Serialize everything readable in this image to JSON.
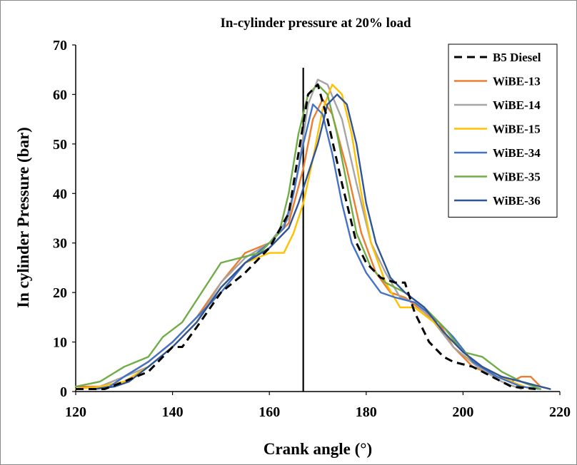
{
  "chart_data": {
    "type": "line",
    "title": "In-cylinder pressure at 20% load",
    "xlabel": "Crank angle (°)",
    "ylabel": "In cylinder Pressure (bar)",
    "xlim": [
      120,
      220
    ],
    "ylim": [
      0,
      70
    ],
    "x_ticks": [
      "120",
      "140",
      "160",
      "180",
      "200",
      "220"
    ],
    "y_ticks": [
      "0",
      "10",
      "20",
      "30",
      "40",
      "50",
      "60",
      "70"
    ],
    "grid": false,
    "legend_position": "top-right",
    "reference_line_x": 167,
    "series": [
      {
        "name": "B5 Diesel",
        "color": "#000000",
        "dashed": true,
        "points": [
          [
            120,
            0.5
          ],
          [
            126,
            0.5
          ],
          [
            130,
            2
          ],
          [
            135,
            4
          ],
          [
            140,
            9
          ],
          [
            142,
            9
          ],
          [
            145,
            13
          ],
          [
            150,
            20
          ],
          [
            155,
            24
          ],
          [
            160,
            29
          ],
          [
            164,
            36
          ],
          [
            166,
            48
          ],
          [
            168,
            60
          ],
          [
            170,
            62
          ],
          [
            172,
            55
          ],
          [
            175,
            42
          ],
          [
            178,
            30
          ],
          [
            180,
            26
          ],
          [
            183,
            23
          ],
          [
            186,
            22
          ],
          [
            188,
            22
          ],
          [
            190,
            16
          ],
          [
            193,
            10
          ],
          [
            196,
            7
          ],
          [
            198,
            6
          ],
          [
            202,
            5
          ],
          [
            206,
            3
          ],
          [
            210,
            1
          ],
          [
            215,
            0.5
          ]
        ]
      },
      {
        "name": "WiBE-13",
        "color": "#ED7D31",
        "dashed": false,
        "points": [
          [
            120,
            1
          ],
          [
            125,
            1
          ],
          [
            130,
            3
          ],
          [
            135,
            6
          ],
          [
            140,
            10
          ],
          [
            145,
            15
          ],
          [
            150,
            22
          ],
          [
            155,
            28
          ],
          [
            160,
            30
          ],
          [
            164,
            34
          ],
          [
            167,
            45
          ],
          [
            169,
            55
          ],
          [
            171,
            59
          ],
          [
            173,
            56
          ],
          [
            176,
            45
          ],
          [
            179,
            32
          ],
          [
            182,
            24
          ],
          [
            185,
            20
          ],
          [
            188,
            19
          ],
          [
            192,
            16
          ],
          [
            195,
            14
          ],
          [
            198,
            9
          ],
          [
            202,
            5
          ],
          [
            207,
            3
          ],
          [
            210,
            2
          ],
          [
            212,
            3
          ],
          [
            214,
            3
          ],
          [
            216,
            1
          ],
          [
            218,
            0.5
          ]
        ]
      },
      {
        "name": "WiBE-14",
        "color": "#A5A5A5",
        "dashed": false,
        "points": [
          [
            120,
            0.5
          ],
          [
            125,
            1
          ],
          [
            130,
            3
          ],
          [
            135,
            5
          ],
          [
            140,
            9
          ],
          [
            145,
            14
          ],
          [
            150,
            22
          ],
          [
            155,
            27
          ],
          [
            160,
            30
          ],
          [
            164,
            35
          ],
          [
            166,
            45
          ],
          [
            168,
            58
          ],
          [
            170,
            63
          ],
          [
            172,
            62
          ],
          [
            175,
            55
          ],
          [
            178,
            42
          ],
          [
            181,
            30
          ],
          [
            184,
            24
          ],
          [
            187,
            19
          ],
          [
            190,
            18
          ],
          [
            194,
            14
          ],
          [
            198,
            9
          ],
          [
            203,
            5
          ],
          [
            208,
            2
          ],
          [
            212,
            0.5
          ]
        ]
      },
      {
        "name": "WiBE-15",
        "color": "#FFC000",
        "dashed": false,
        "points": [
          [
            120,
            0.5
          ],
          [
            125,
            1
          ],
          [
            130,
            2
          ],
          [
            135,
            5
          ],
          [
            140,
            9
          ],
          [
            145,
            14
          ],
          [
            150,
            21
          ],
          [
            155,
            26
          ],
          [
            160,
            28
          ],
          [
            163,
            28
          ],
          [
            165,
            32
          ],
          [
            167,
            38
          ],
          [
            169,
            47
          ],
          [
            171,
            57
          ],
          [
            173,
            62
          ],
          [
            175,
            60
          ],
          [
            177,
            52
          ],
          [
            179,
            40
          ],
          [
            181,
            30
          ],
          [
            184,
            22
          ],
          [
            187,
            17
          ],
          [
            190,
            17
          ],
          [
            194,
            14
          ],
          [
            198,
            10
          ],
          [
            202,
            6
          ],
          [
            206,
            4
          ],
          [
            210,
            2
          ],
          [
            214,
            0.5
          ]
        ]
      },
      {
        "name": "WiBE-34",
        "color": "#4472C4",
        "dashed": false,
        "points": [
          [
            124,
            0.5
          ],
          [
            127,
            1
          ],
          [
            130,
            3
          ],
          [
            135,
            6
          ],
          [
            140,
            10
          ],
          [
            145,
            15
          ],
          [
            150,
            20
          ],
          [
            155,
            26
          ],
          [
            160,
            30
          ],
          [
            163,
            33
          ],
          [
            165,
            40
          ],
          [
            167,
            50
          ],
          [
            169,
            58
          ],
          [
            171,
            56
          ],
          [
            173,
            48
          ],
          [
            175,
            38
          ],
          [
            177,
            30
          ],
          [
            180,
            24
          ],
          [
            183,
            20
          ],
          [
            186,
            19
          ],
          [
            190,
            18
          ],
          [
            194,
            15
          ],
          [
            198,
            11
          ],
          [
            202,
            6
          ],
          [
            207,
            3
          ],
          [
            212,
            1
          ],
          [
            216,
            0.5
          ]
        ]
      },
      {
        "name": "WiBE-35",
        "color": "#70AD47",
        "dashed": false,
        "points": [
          [
            120,
            1
          ],
          [
            125,
            2
          ],
          [
            130,
            5
          ],
          [
            135,
            7
          ],
          [
            138,
            11
          ],
          [
            142,
            14
          ],
          [
            146,
            20
          ],
          [
            150,
            26
          ],
          [
            154,
            27
          ],
          [
            158,
            28
          ],
          [
            162,
            32
          ],
          [
            164,
            40
          ],
          [
            166,
            52
          ],
          [
            168,
            60
          ],
          [
            170,
            62
          ],
          [
            172,
            60
          ],
          [
            174,
            52
          ],
          [
            176,
            42
          ],
          [
            178,
            32
          ],
          [
            181,
            25
          ],
          [
            184,
            22
          ],
          [
            188,
            20
          ],
          [
            192,
            17
          ],
          [
            196,
            13
          ],
          [
            200,
            8
          ],
          [
            204,
            7
          ],
          [
            208,
            4
          ],
          [
            212,
            2
          ],
          [
            216,
            0.5
          ]
        ]
      },
      {
        "name": "WiBE-36",
        "color": "#2F5597",
        "dashed": false,
        "points": [
          [
            124,
            0.5
          ],
          [
            128,
            1
          ],
          [
            131,
            2
          ],
          [
            135,
            5
          ],
          [
            140,
            9
          ],
          [
            145,
            14
          ],
          [
            150,
            21
          ],
          [
            155,
            26
          ],
          [
            160,
            29
          ],
          [
            164,
            33
          ],
          [
            166,
            38
          ],
          [
            168,
            44
          ],
          [
            170,
            50
          ],
          [
            172,
            58
          ],
          [
            174,
            60
          ],
          [
            176,
            58
          ],
          [
            178,
            50
          ],
          [
            180,
            38
          ],
          [
            182,
            30
          ],
          [
            185,
            23
          ],
          [
            188,
            20
          ],
          [
            192,
            17
          ],
          [
            196,
            12
          ],
          [
            200,
            8
          ],
          [
            204,
            5
          ],
          [
            208,
            3
          ],
          [
            212,
            2
          ],
          [
            216,
            1
          ],
          [
            218,
            0.5
          ]
        ]
      }
    ]
  }
}
